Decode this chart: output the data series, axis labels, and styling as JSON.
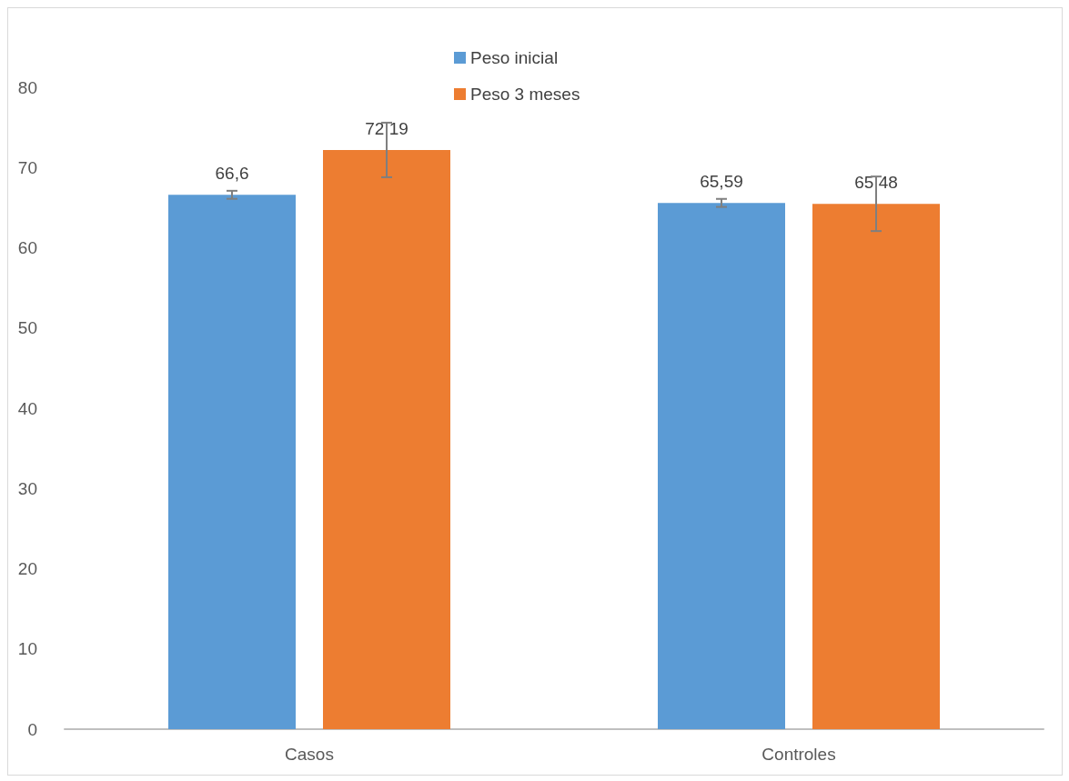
{
  "chart_data": {
    "type": "bar",
    "categories": [
      "Casos",
      "Controles"
    ],
    "series": [
      {
        "name": "Peso inicial",
        "color": "#5b9bd5",
        "values": [
          66.6,
          65.59
        ],
        "errors": [
          0.5,
          0.5
        ],
        "value_labels": [
          "66,6",
          "65,59"
        ]
      },
      {
        "name": "Peso 3 meses",
        "color": "#ed7d31",
        "values": [
          72.19,
          65.48
        ],
        "errors": [
          3.4,
          3.4
        ],
        "value_labels": [
          "72,19",
          "65,48"
        ]
      }
    ],
    "ylim": [
      0,
      80
    ],
    "yticks": [
      0,
      10,
      20,
      30,
      40,
      50,
      60,
      70,
      80
    ],
    "grid": false,
    "legend": "top"
  }
}
